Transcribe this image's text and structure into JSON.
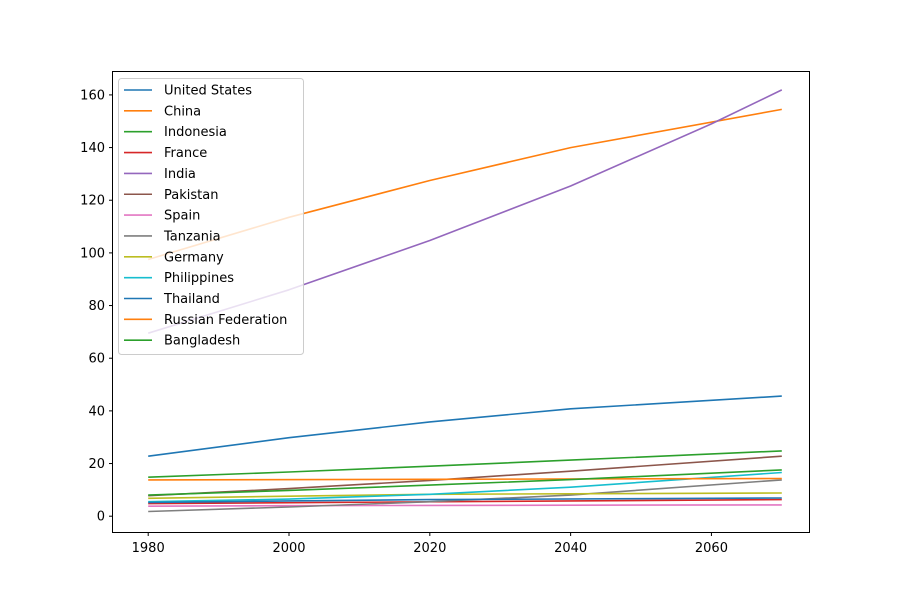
{
  "chart_data": {
    "type": "line",
    "title": "",
    "xlabel": "",
    "ylabel": "",
    "xlim": [
      1975,
      2074
    ],
    "ylim": [
      -6,
      168.7
    ],
    "xticks": [
      1980,
      2000,
      2020,
      2040,
      2060
    ],
    "yticks": [
      0,
      20,
      40,
      60,
      80,
      100,
      120,
      140,
      160
    ],
    "grid": false,
    "legend_position": "top-left",
    "series": [
      {
        "name": "United States",
        "color": "#1f77b4",
        "x": [
          1980,
          2000,
          2020,
          2040,
          2070
        ],
        "values": [
          22.8,
          29.8,
          35.8,
          40.8,
          45.6
        ]
      },
      {
        "name": "China",
        "color": "#ff7f0e",
        "x": [
          1980,
          2000,
          2020,
          2040,
          2070
        ],
        "values": [
          97.5,
          113.5,
          127.5,
          140.0,
          154.5
        ]
      },
      {
        "name": "Indonesia",
        "color": "#2ca02c",
        "x": [
          1980,
          2000,
          2020,
          2040,
          2070
        ],
        "values": [
          14.8,
          16.8,
          19.0,
          21.3,
          24.8
        ]
      },
      {
        "name": "France",
        "color": "#d62728",
        "x": [
          1980,
          2070
        ],
        "values": [
          4.8,
          6.3
        ]
      },
      {
        "name": "India",
        "color": "#9467bd",
        "x": [
          1980,
          2000,
          2020,
          2040,
          2060,
          2070
        ],
        "values": [
          69.5,
          86.0,
          104.7,
          125.4,
          149.0,
          161.9
        ]
      },
      {
        "name": "Pakistan",
        "color": "#8c564b",
        "x": [
          1980,
          2000,
          2020,
          2040,
          2070
        ],
        "values": [
          7.8,
          10.5,
          13.6,
          17.1,
          22.8
        ]
      },
      {
        "name": "Spain",
        "color": "#e377c2",
        "x": [
          1980,
          2000,
          2020,
          2070
        ],
        "values": [
          3.8,
          4.0,
          4.1,
          4.3
        ]
      },
      {
        "name": "Tanzania",
        "color": "#7f7f7f",
        "x": [
          1980,
          2000,
          2020,
          2040,
          2070
        ],
        "values": [
          1.8,
          3.5,
          5.5,
          8.0,
          13.8
        ]
      },
      {
        "name": "Germany",
        "color": "#bcbd22",
        "x": [
          1980,
          2000,
          2020,
          2070
        ],
        "values": [
          6.8,
          7.6,
          8.3,
          8.8
        ]
      },
      {
        "name": "Philippines",
        "color": "#17becf",
        "x": [
          1980,
          2000,
          2020,
          2040,
          2070
        ],
        "values": [
          5.5,
          6.5,
          8.3,
          11.0,
          16.6
        ]
      },
      {
        "name": "Thailand",
        "color": "#1f77b4",
        "x": [
          1980,
          2000,
          2020,
          2070
        ],
        "values": [
          5.2,
          5.8,
          6.3,
          6.9
        ]
      },
      {
        "name": "Russian Federation",
        "color": "#ff7f0e",
        "x": [
          1980,
          2020,
          2070
        ],
        "values": [
          13.8,
          14.0,
          14.3
        ]
      },
      {
        "name": "Bangladesh",
        "color": "#2ca02c",
        "x": [
          1980,
          2000,
          2020,
          2040,
          2070
        ],
        "values": [
          8.0,
          9.8,
          11.8,
          13.9,
          17.6
        ]
      }
    ]
  }
}
